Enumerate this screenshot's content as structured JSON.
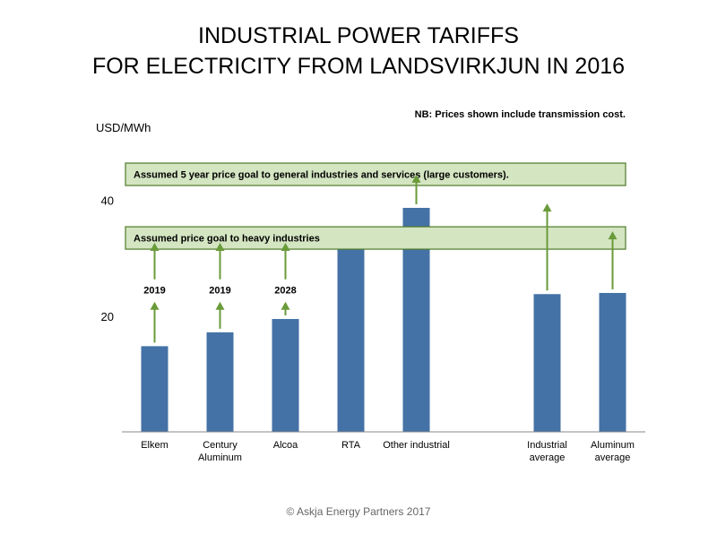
{
  "chart_data": {
    "type": "bar",
    "title_lines": [
      "INDUSTRIAL POWER TARIFFS",
      "FOR ELECTRICITY FROM LANDSVIRKJUN IN 2016"
    ],
    "note": "NB: Prices shown include transmission cost.",
    "ylabel": "USD/MWh",
    "ylim": [
      0,
      50
    ],
    "yticks": [
      20,
      40
    ],
    "categories": [
      [
        "Elkem"
      ],
      [
        "Century",
        "Aluminum"
      ],
      [
        "Alcoa"
      ],
      [
        "RTA"
      ],
      [
        "Other industrial"
      ],
      [
        ""
      ],
      [
        "Industrial",
        "average"
      ],
      [
        "Aluminum",
        "average"
      ]
    ],
    "values": [
      14.8,
      17.2,
      19.5,
      33.8,
      38.7,
      null,
      23.8,
      24.0
    ],
    "goals": [
      {
        "label": "Assumed 5 year price goal to general industries and services (large customers).",
        "value": 44.5
      },
      {
        "label": "Assumed price goal to heavy industries",
        "value": 33.5
      }
    ],
    "arrows": [
      {
        "category_index": 0,
        "year": "2019",
        "target": 32.5
      },
      {
        "category_index": 1,
        "year": "2019",
        "target": 32.5
      },
      {
        "category_index": 2,
        "year": "2028",
        "target": 32.5
      },
      {
        "category_index": 4,
        "year": "",
        "target": 44.3
      },
      {
        "category_index": 6,
        "year": "",
        "target": 39.3
      },
      {
        "category_index": 7,
        "year": "",
        "target": 34.5
      }
    ],
    "colors": {
      "bar": "#4472a6",
      "goal_fill": "#d4e5c2",
      "goal_stroke": "#4f7a28",
      "arrow": "#6a9b3a"
    }
  },
  "footer": "© Askja Energy Partners 2017"
}
